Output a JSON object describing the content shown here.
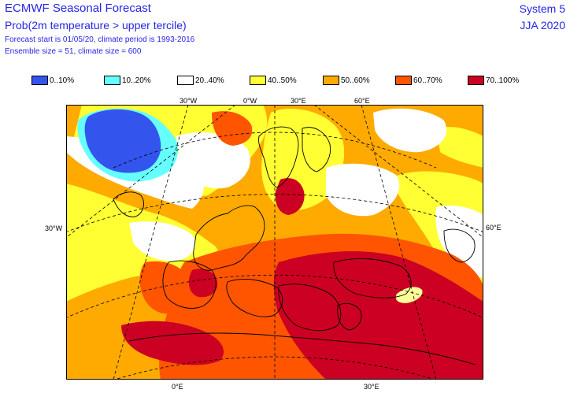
{
  "header": {
    "title": "ECMWF Seasonal Forecast",
    "parameter": "Prob(2m temperature > upper tercile)",
    "forecast_info": "Forecast start is 01/05/20, climate period is 1993-2016",
    "ensemble_info": "Ensemble size = 51, climate size = 600",
    "system": "System 5",
    "period": "JJA 2020"
  },
  "legend": [
    {
      "label": "0..10%",
      "color": "#3355ee"
    },
    {
      "label": "10..20%",
      "color": "#66ffff"
    },
    {
      "label": "20..40%",
      "color": "#ffffff"
    },
    {
      "label": "40..50%",
      "color": "#ffff33"
    },
    {
      "label": "50..60%",
      "color": "#ffaa00"
    },
    {
      "label": "60..70%",
      "color": "#ff5500"
    },
    {
      "label": "70..100%",
      "color": "#cc0022"
    }
  ],
  "map": {
    "top_labels": [
      "30°W",
      "0°W",
      "30°E",
      "60°E"
    ],
    "left_label": "30°W",
    "right_label": "60°E",
    "bottom_labels": [
      "0°E",
      "30°E"
    ]
  }
}
